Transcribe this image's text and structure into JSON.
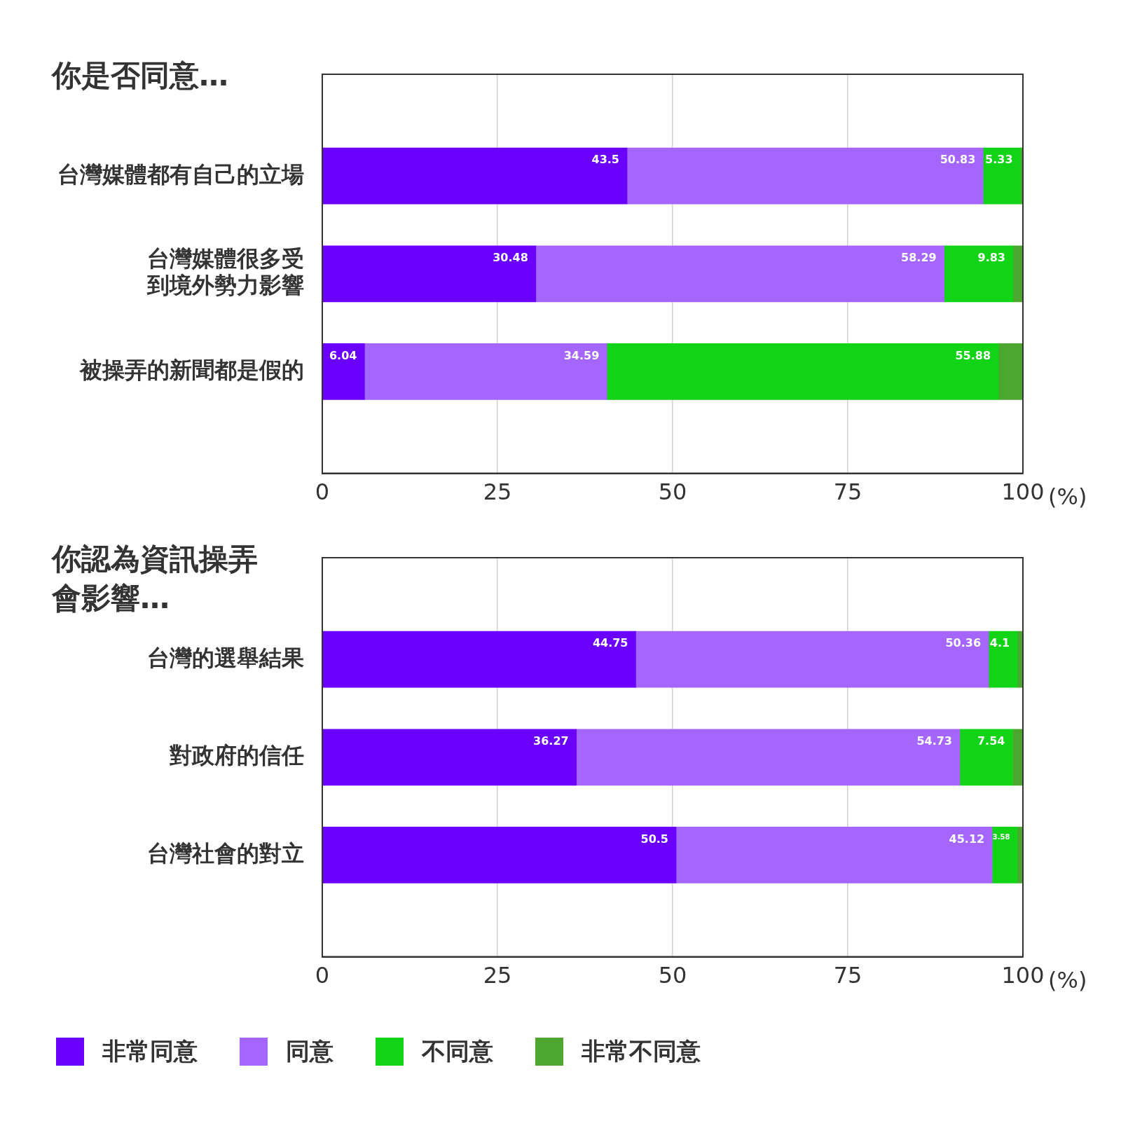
{
  "chart_data": [
    {
      "type": "bar",
      "orientation": "horizontal",
      "stacked": true,
      "title": "你是否同意…",
      "xlabel": "(%)",
      "categories": [
        "台灣媒體都有自己的立場",
        "台灣媒體很多受到境外勢力影響",
        "被操弄的新聞都是假的"
      ],
      "series": [
        {
          "color": "#6a00ff",
          "values": [
            43.5,
            30.48,
            6.04
          ],
          "value_labels": [
            "43.5",
            "30.48",
            "6.04"
          ]
        },
        {
          "color": "#a466ff",
          "values": [
            50.83,
            58.29,
            34.59
          ],
          "value_labels": [
            "50.83",
            "58.29",
            "34.59"
          ]
        },
        {
          "color": "#12d416",
          "values": [
            5.33,
            9.83,
            55.88
          ],
          "value_labels": [
            "5.33",
            "9.83",
            "55.88"
          ]
        },
        {
          "color": "#4ca62f",
          "values": [
            0.3,
            1.4,
            3.5
          ],
          "value_labels": [
            null,
            null,
            null
          ]
        }
      ],
      "xlim": [
        0,
        100
      ],
      "xticks": [
        0,
        25,
        50,
        75,
        100
      ],
      "grid": "x",
      "legend": false
    },
    {
      "type": "bar",
      "orientation": "horizontal",
      "stacked": true,
      "title": "你認為資訊操弄會影響…",
      "xlabel": "(%)",
      "categories": [
        "台灣的選舉結果",
        "對政府的信任",
        "台灣社會的對立"
      ],
      "series": [
        {
          "name": "非常同意",
          "color": "#6a00ff",
          "values": [
            44.75,
            36.27,
            50.5
          ],
          "value_labels": [
            "44.75",
            "36.27",
            "50.5"
          ]
        },
        {
          "name": "同意",
          "color": "#a466ff",
          "values": [
            50.36,
            54.73,
            45.12
          ],
          "value_labels": [
            "50.36",
            "54.73",
            "45.12"
          ]
        },
        {
          "name": "不同意",
          "color": "#12d416",
          "values": [
            4.1,
            7.54,
            3.58
          ],
          "value_labels": [
            "4.1",
            "7.54",
            "3.58"
          ]
        },
        {
          "name": "非常不同意",
          "color": "#4ca62f",
          "values": [
            0.8,
            1.5,
            0.8
          ],
          "value_labels": [
            null,
            null,
            null
          ]
        }
      ],
      "xlim": [
        0,
        100
      ],
      "xticks": [
        0,
        25,
        50,
        75,
        100
      ],
      "grid": "x",
      "legend": "bottom"
    }
  ]
}
